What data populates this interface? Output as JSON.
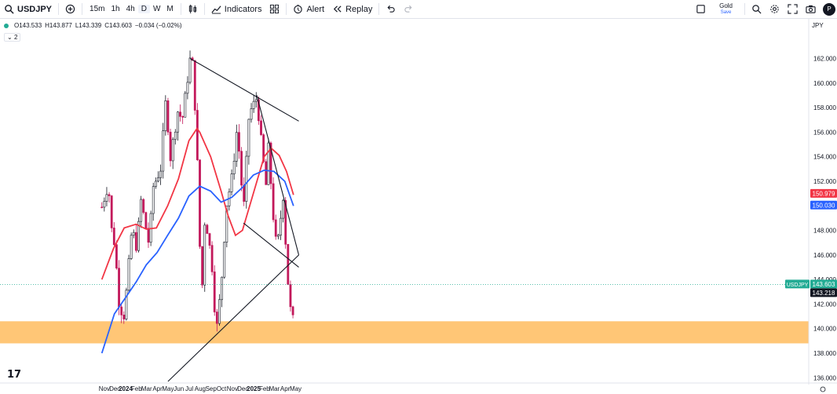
{
  "toolbar": {
    "symbol": "USDJPY",
    "intervals": [
      "15m",
      "1h",
      "4h",
      "D",
      "W",
      "M"
    ],
    "active_interval": "D",
    "indicators_label": "Indicators",
    "alert_label": "Alert",
    "replay_label": "Replay",
    "gold_label": "Gold",
    "save_label": "Save",
    "avatar_label": "P"
  },
  "legend": {
    "open": "O143.533",
    "high": "H143.877",
    "low": "L143.339",
    "close": "C143.603",
    "change": "−0.034 (−0.02%)",
    "collapsed_count": "2"
  },
  "chart_data": {
    "type": "candlestick",
    "symbol": "USDJPY",
    "currency": "JPY",
    "interval": "D",
    "x_tick_labels": [
      "Nov",
      "Dec",
      "2024",
      "Feb",
      "Mar",
      "Apr",
      "May",
      "Jun",
      "Jul",
      "Aug",
      "Sep",
      "Oct",
      "Nov",
      "Dec",
      "2025",
      "Feb",
      "Mar",
      "Apr",
      "May"
    ],
    "y_tick_labels": [
      "162.000",
      "160.000",
      "158.000",
      "156.000",
      "154.000",
      "152.000",
      "150.000",
      "148.000",
      "146.000",
      "144.000",
      "142.000",
      "140.000",
      "138.000",
      "136.000"
    ],
    "ylim": [
      135.5,
      163.2
    ],
    "price_path": [
      [
        "2023-10-25",
        149.9
      ],
      [
        "2023-11-13",
        151.8
      ],
      [
        "2023-11-21",
        148.2
      ],
      [
        "2023-12-01",
        146.8
      ],
      [
        "2023-12-14",
        141.8
      ],
      [
        "2023-12-28",
        141.0
      ],
      [
        "2024-01-19",
        148.2
      ],
      [
        "2024-02-02",
        146.5
      ],
      [
        "2024-02-13",
        150.6
      ],
      [
        "2024-03-08",
        146.8
      ],
      [
        "2024-03-19",
        151.5
      ],
      [
        "2024-04-10",
        153.0
      ],
      [
        "2024-04-29",
        160.2
      ],
      [
        "2024-05-03",
        153.0
      ],
      [
        "2024-05-29",
        157.7
      ],
      [
        "2024-06-11",
        157.0
      ],
      [
        "2024-07-03",
        161.9
      ],
      [
        "2024-07-11",
        161.5
      ],
      [
        "2024-07-22",
        155.5
      ],
      [
        "2024-08-05",
        142.0
      ],
      [
        "2024-08-15",
        149.3
      ],
      [
        "2024-09-03",
        145.5
      ],
      [
        "2024-09-16",
        139.6
      ],
      [
        "2024-10-01",
        143.8
      ],
      [
        "2024-10-15",
        150.0
      ],
      [
        "2024-11-01",
        152.5
      ],
      [
        "2024-11-15",
        156.5
      ],
      [
        "2024-12-03",
        149.5
      ],
      [
        "2024-12-19",
        157.5
      ],
      [
        "2025-01-10",
        158.8
      ],
      [
        "2025-01-27",
        154.0
      ],
      [
        "2025-02-06",
        151.5
      ],
      [
        "2025-02-12",
        154.8
      ],
      [
        "2025-03-03",
        147.2
      ],
      [
        "2025-03-11",
        147.0
      ],
      [
        "2025-03-27",
        151.0
      ],
      [
        "2025-04-04",
        146.0
      ],
      [
        "2025-04-11",
        143.0
      ],
      [
        "2025-04-22",
        140.0
      ],
      [
        "2025-04-28",
        143.6
      ]
    ],
    "series": [
      {
        "name": "MA (red)",
        "color": "#f23645",
        "last_value": "150.979",
        "points": [
          [
            "2023-10-25",
            144.0
          ],
          [
            "2023-11-27",
            146.5
          ],
          [
            "2023-12-28",
            148.2
          ],
          [
            "2024-01-31",
            148.5
          ],
          [
            "2024-02-29",
            148.1
          ],
          [
            "2024-03-29",
            148.2
          ],
          [
            "2024-04-30",
            150.0
          ],
          [
            "2024-05-31",
            152.2
          ],
          [
            "2024-06-30",
            155.3
          ],
          [
            "2024-07-23",
            156.3
          ],
          [
            "2024-07-31",
            156.0
          ],
          [
            "2024-08-31",
            154.0
          ],
          [
            "2024-09-30",
            151.2
          ],
          [
            "2024-10-20",
            149.2
          ],
          [
            "2024-11-10",
            147.6
          ],
          [
            "2024-11-30",
            148.0
          ],
          [
            "2024-12-31",
            151.0
          ],
          [
            "2025-01-31",
            154.0
          ],
          [
            "2025-02-20",
            154.7
          ],
          [
            "2025-03-15",
            154.1
          ],
          [
            "2025-04-05",
            152.8
          ],
          [
            "2025-04-25",
            150.9
          ]
        ]
      },
      {
        "name": "MA (blue)",
        "color": "#2962ff",
        "last_value": "150.030",
        "points": [
          [
            "2023-10-25",
            138.0
          ],
          [
            "2023-11-30",
            141.2
          ],
          [
            "2023-12-31",
            142.5
          ],
          [
            "2024-01-31",
            143.8
          ],
          [
            "2024-02-29",
            145.2
          ],
          [
            "2024-03-31",
            146.2
          ],
          [
            "2024-04-30",
            147.6
          ],
          [
            "2024-05-31",
            149.0
          ],
          [
            "2024-06-30",
            150.8
          ],
          [
            "2024-07-31",
            151.6
          ],
          [
            "2024-08-31",
            151.2
          ],
          [
            "2024-09-30",
            150.3
          ],
          [
            "2024-10-31",
            150.7
          ],
          [
            "2024-11-30",
            151.5
          ],
          [
            "2024-12-31",
            152.5
          ],
          [
            "2025-01-31",
            152.9
          ],
          [
            "2025-02-28",
            152.8
          ],
          [
            "2025-03-31",
            152.0
          ],
          [
            "2025-04-25",
            150.0
          ]
        ]
      }
    ],
    "trendlines": [
      {
        "name": "upper wedge",
        "from": [
          "2024-07-03",
          162.0
        ],
        "to": [
          "2025-05-10",
          156.9
        ],
        "color": "#131722"
      },
      {
        "name": "descending line",
        "from": [
          "2025-01-10",
          159.0
        ],
        "to": [
          "2025-05-10",
          146.0
        ],
        "color": "#131722"
      },
      {
        "name": "lower channel",
        "from": [
          "2024-12-03",
          148.6
        ],
        "to": [
          "2025-05-10",
          145.0
        ],
        "color": "#131722"
      },
      {
        "name": "rising support",
        "from": [
          "2024-05-01",
          135.7
        ],
        "to": [
          "2025-05-10",
          146.0
        ],
        "color": "#131722"
      }
    ],
    "zones": [
      {
        "name": "support zone",
        "from": 138.8,
        "to": 140.6,
        "color": "#ffc067"
      }
    ],
    "last_price_labels": [
      {
        "text": "USDJPY",
        "value": "143.603",
        "color": "#22ab94"
      },
      {
        "text": "",
        "value": "143.218",
        "color": "#131722"
      },
      {
        "text": "",
        "value": "150.979",
        "color": "#f23645"
      },
      {
        "text": "",
        "value": "150.030",
        "color": "#2962ff"
      }
    ],
    "grid": false,
    "legend": "top-left"
  }
}
